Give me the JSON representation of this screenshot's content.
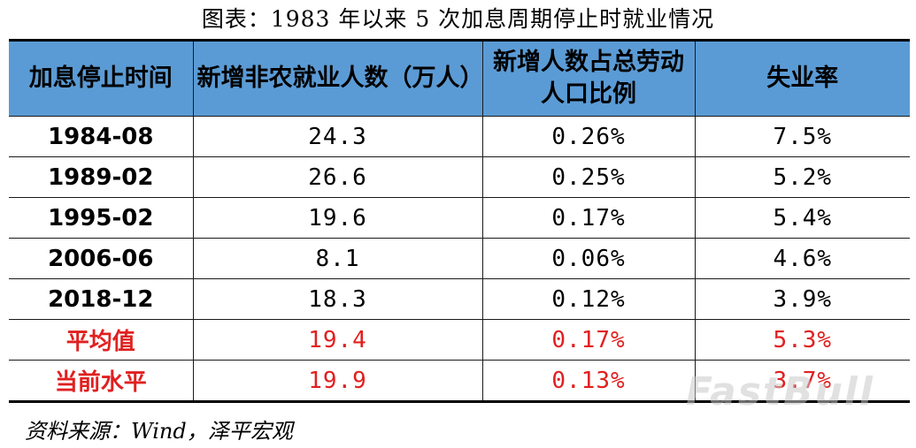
{
  "title": "图表：1983 年以来 5 次加息周期停止时就业情况",
  "table": {
    "headers": [
      "加息停止时间",
      "新增非农就业人数（万人）",
      "新增人数占总劳动人口比例",
      "失业率"
    ],
    "rows": [
      [
        "1984-08",
        "24.3",
        "0.26%",
        "7.5%"
      ],
      [
        "1989-02",
        "26.6",
        "0.25%",
        "5.2%"
      ],
      [
        "1995-02",
        "19.6",
        "0.17%",
        "5.4%"
      ],
      [
        "2006-06",
        "8.1",
        "0.06%",
        "4.6%"
      ],
      [
        "2018-12",
        "18.3",
        "0.12%",
        "3.9%"
      ]
    ],
    "summary_rows": [
      [
        "平均值",
        "19.4",
        "0.17%",
        "5.3%"
      ],
      [
        "当前水平",
        "19.9",
        "0.13%",
        "3.7%"
      ]
    ],
    "header_color": "#5b9bd5",
    "highlight_color": "#e02020"
  },
  "source": "资料来源：Wind，泽平宏观",
  "watermark": "FastBull"
}
